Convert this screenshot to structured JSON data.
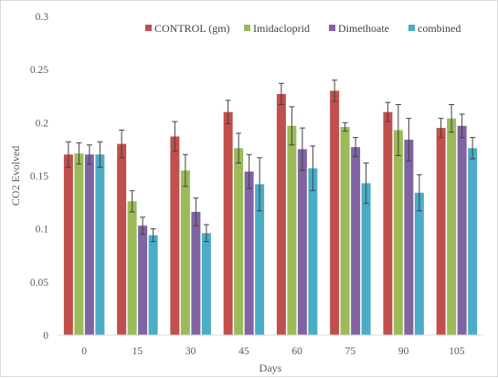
{
  "chart_data": {
    "type": "bar",
    "title": "",
    "xlabel": "Days",
    "ylabel": "CO2 Evolved",
    "categories": [
      "0",
      "15",
      "30",
      "45",
      "60",
      "75",
      "90",
      "105"
    ],
    "ylim": [
      0,
      0.3
    ],
    "yticks": [
      0,
      0.05,
      0.1,
      0.15,
      0.2,
      0.25,
      0.3
    ],
    "ytick_labels": [
      "0",
      "0.05",
      "0.1",
      "0.15",
      "0.2",
      "0.25",
      "0.3"
    ],
    "legend_position": "top-right",
    "grid": false,
    "series": [
      {
        "name": "CONTROL (gm)",
        "color": "#C0504D",
        "values": [
          0.17,
          0.18,
          0.187,
          0.21,
          0.227,
          0.23,
          0.21,
          0.195
        ],
        "errors": [
          0.012,
          0.013,
          0.014,
          0.011,
          0.01,
          0.01,
          0.009,
          0.009
        ]
      },
      {
        "name": "Imidacloprid",
        "color": "#9BBB59",
        "values": [
          0.171,
          0.126,
          0.155,
          0.176,
          0.197,
          0.196,
          0.193,
          0.204
        ],
        "errors": [
          0.01,
          0.01,
          0.015,
          0.014,
          0.018,
          0.004,
          0.024,
          0.013
        ]
      },
      {
        "name": "Dimethoate",
        "color": "#8064A2",
        "values": [
          0.17,
          0.103,
          0.116,
          0.154,
          0.175,
          0.177,
          0.184,
          0.197
        ],
        "errors": [
          0.009,
          0.008,
          0.013,
          0.016,
          0.02,
          0.009,
          0.02,
          0.011
        ]
      },
      {
        "name": "combined",
        "color": "#4BACC6",
        "values": [
          0.17,
          0.094,
          0.096,
          0.142,
          0.157,
          0.143,
          0.134,
          0.176
        ],
        "errors": [
          0.012,
          0.006,
          0.008,
          0.025,
          0.021,
          0.019,
          0.017,
          0.01
        ]
      }
    ]
  }
}
